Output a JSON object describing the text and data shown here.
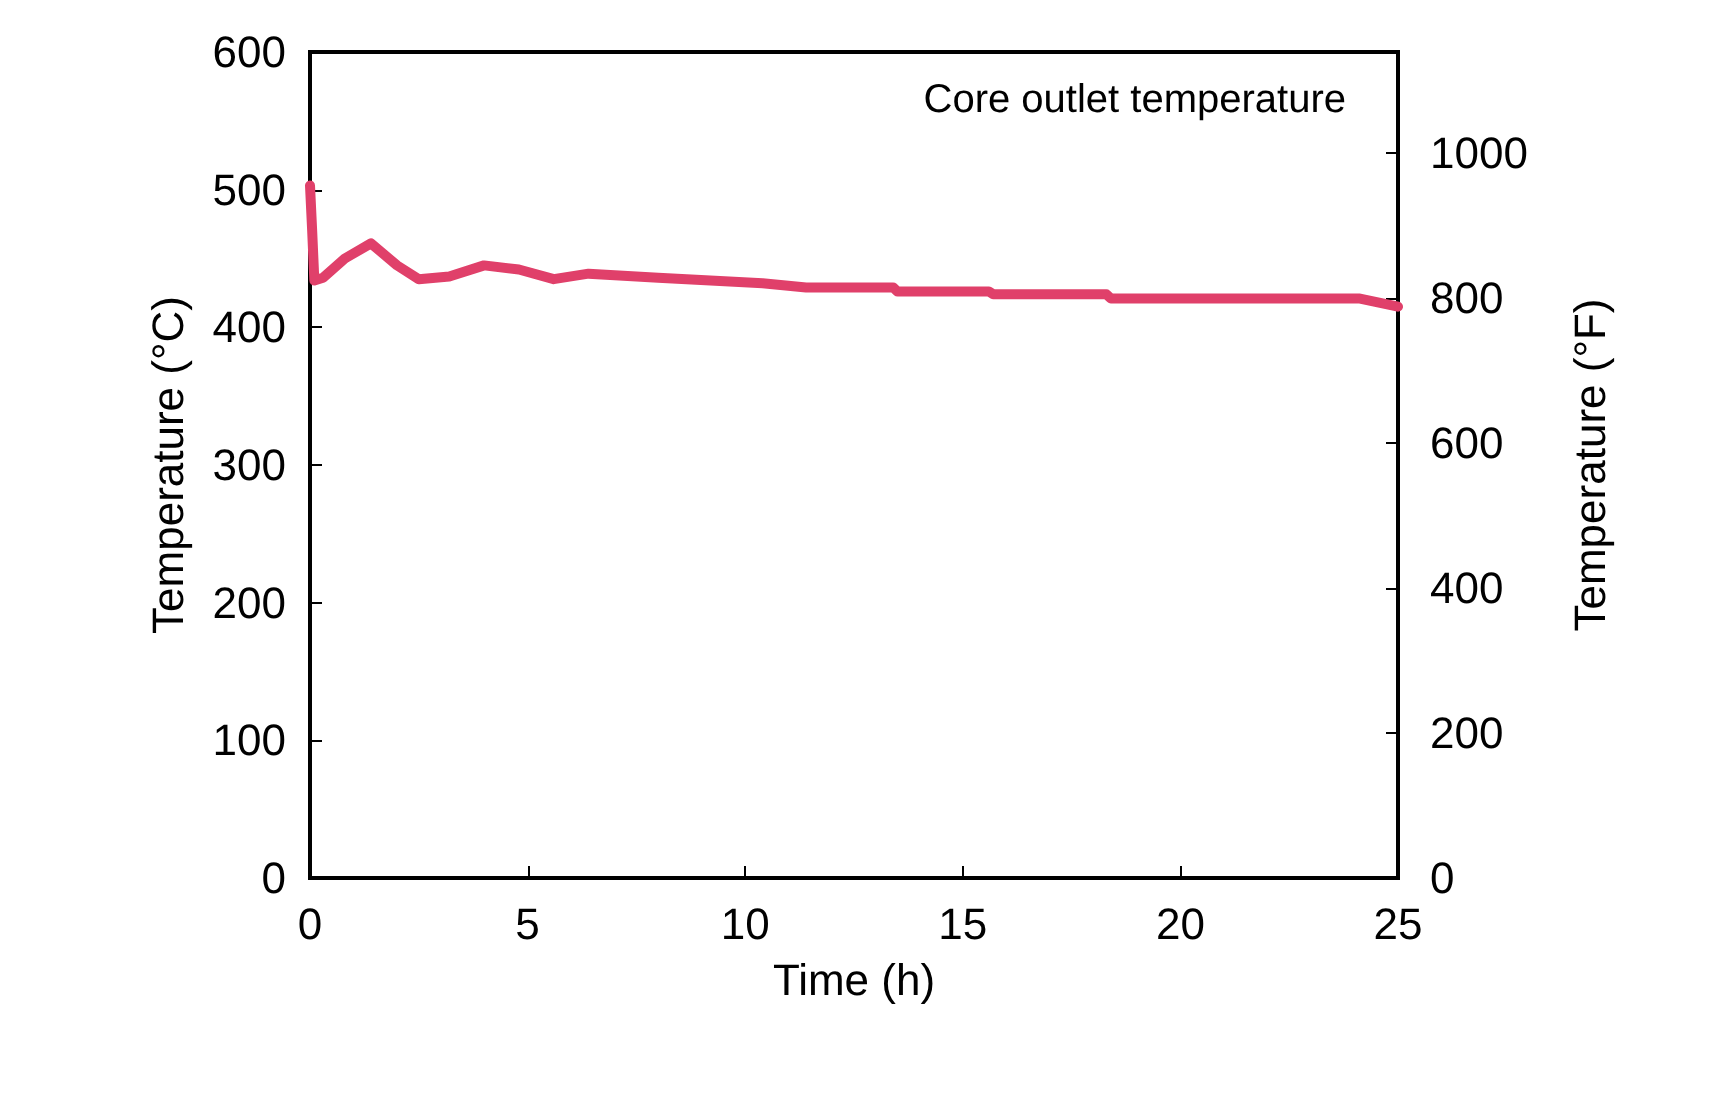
{
  "chart_data": {
    "type": "line",
    "xlabel": "Time (h)",
    "ylabel": "Temperature (°C)",
    "y2label": "Temperature (°F)",
    "annotations": [
      "Core outlet temperature"
    ],
    "series": [
      {
        "color": "#e0406a",
        "x": [
          0,
          0.05,
          0.1,
          0.3,
          0.8,
          1.4,
          2.0,
          2.5,
          3.2,
          4.0,
          4.8,
          5.6,
          6.4,
          8.0,
          10.4,
          11.4,
          13.4,
          13.5,
          15.6,
          15.7,
          18.3,
          18.4,
          24.1,
          25
        ],
        "values": [
          503,
          470,
          434,
          436,
          450,
          461,
          445,
          435,
          437,
          445,
          442,
          435,
          439,
          436,
          432,
          429,
          429,
          426,
          426,
          424,
          424,
          421,
          421,
          415
        ]
      }
    ],
    "xlim": [
      0,
      25
    ],
    "xticks": [
      0,
      5,
      10,
      15,
      20,
      25
    ],
    "ylim": [
      0,
      600
    ],
    "yticks": [
      0,
      100,
      200,
      300,
      400,
      500,
      600
    ],
    "y2lim": [
      0,
      1140
    ],
    "y2ticks": [
      0,
      200,
      400,
      600,
      800,
      1000
    ],
    "grid": false,
    "marker": "none",
    "line_style": "solid"
  }
}
